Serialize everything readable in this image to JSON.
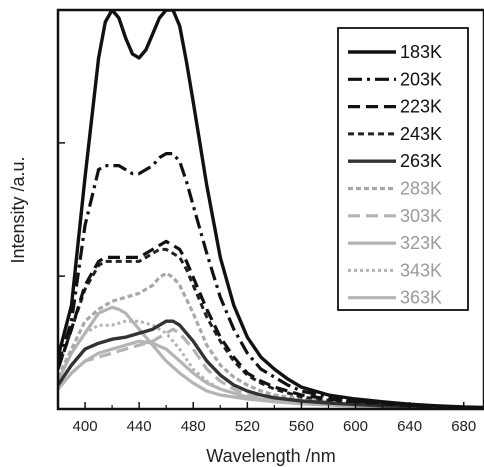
{
  "chart_data": {
    "type": "line",
    "xlabel": "Wavelength /nm",
    "ylabel": "Intensity /a.u.",
    "xlim": [
      380,
      695
    ],
    "ylim": [
      0,
      100
    ],
    "xticks": [
      400,
      440,
      480,
      520,
      560,
      600,
      640,
      680
    ],
    "yticks": [
      33.3,
      66.7
    ],
    "grid": false,
    "legend_position": "top-right",
    "series": [
      {
        "name": "183K",
        "color": "#111111",
        "dash": "solid",
        "width": 3.4,
        "x": [
          380,
          390,
          400,
          410,
          415,
          420,
          425,
          430,
          435,
          440,
          445,
          450,
          455,
          460,
          465,
          470,
          475,
          480,
          490,
          500,
          510,
          520,
          530,
          540,
          550,
          560,
          580,
          600,
          620,
          640,
          660,
          680,
          695
        ],
        "y": [
          13,
          26,
          58,
          88,
          97,
          100,
          98,
          93,
          89,
          88,
          90,
          94,
          98,
          100,
          100,
          96,
          87,
          77,
          56,
          38,
          26,
          18,
          13,
          10,
          7.5,
          5.5,
          3.5,
          2.5,
          1.8,
          1.2,
          0.8,
          0.5,
          0.4
        ]
      },
      {
        "name": "203K",
        "color": "#111111",
        "dash": "14 5 3 5",
        "width": 3.2,
        "x": [
          380,
          390,
          400,
          410,
          415,
          420,
          425,
          430,
          435,
          440,
          445,
          450,
          455,
          460,
          465,
          470,
          475,
          480,
          490,
          500,
          510,
          520,
          530,
          540,
          550,
          560,
          580,
          600,
          620,
          640,
          660,
          680,
          695
        ],
        "y": [
          11,
          22,
          46,
          60,
          61,
          61,
          61,
          60,
          59,
          59,
          60,
          61,
          63,
          64,
          64,
          62,
          57,
          51,
          39,
          28,
          20,
          14,
          10,
          8,
          6,
          4.5,
          3,
          2,
          1.5,
          1,
          0.7,
          0.5,
          0.3
        ]
      },
      {
        "name": "223K",
        "color": "#111111",
        "dash": "12 6",
        "width": 3.2,
        "x": [
          380,
          390,
          400,
          410,
          415,
          420,
          425,
          430,
          435,
          440,
          445,
          450,
          455,
          460,
          465,
          470,
          475,
          480,
          490,
          500,
          510,
          520,
          530,
          540,
          550,
          560,
          580,
          600,
          620,
          640,
          660,
          680,
          695
        ],
        "y": [
          10,
          20,
          31,
          37,
          38,
          38,
          38,
          38,
          38,
          38,
          39,
          40,
          41,
          42,
          41,
          40,
          37,
          33,
          25,
          18,
          13,
          9,
          7,
          5.5,
          4.5,
          3.5,
          2.5,
          1.8,
          1.3,
          0.9,
          0.6,
          0.4,
          0.3
        ]
      },
      {
        "name": "243K",
        "color": "#222222",
        "dash": "6 4",
        "width": 3.0,
        "x": [
          380,
          390,
          400,
          410,
          415,
          420,
          425,
          430,
          435,
          440,
          445,
          450,
          455,
          460,
          465,
          470,
          475,
          480,
          490,
          500,
          510,
          520,
          530,
          540,
          550,
          560,
          580,
          600,
          620,
          640,
          660,
          680,
          695
        ],
        "y": [
          10,
          20,
          30,
          36,
          37,
          37,
          37,
          37,
          37,
          37,
          38,
          39,
          40,
          40,
          39,
          38,
          35,
          31,
          23,
          17,
          12,
          8.5,
          6.5,
          5,
          4,
          3,
          2.2,
          1.6,
          1.1,
          0.8,
          0.5,
          0.4,
          0.3
        ]
      },
      {
        "name": "263K",
        "color": "#333333",
        "dash": "solid",
        "width": 3.4,
        "x": [
          380,
          390,
          400,
          410,
          420,
          430,
          440,
          450,
          460,
          465,
          470,
          480,
          490,
          500,
          510,
          520,
          530,
          540,
          560,
          580,
          600,
          620,
          640,
          660,
          680,
          695
        ],
        "y": [
          6,
          11,
          15,
          16.5,
          17.5,
          18,
          19,
          20,
          22,
          22,
          21,
          17,
          12,
          8.5,
          6,
          4.5,
          3.5,
          2.8,
          2,
          1.5,
          1.1,
          0.8,
          0.6,
          0.4,
          0.3,
          0.2
        ]
      },
      {
        "name": "283K",
        "color": "#a8a8a8",
        "dash": "5 3",
        "width": 3.2,
        "x": [
          380,
          390,
          400,
          410,
          420,
          430,
          440,
          450,
          455,
          460,
          465,
          470,
          480,
          490,
          500,
          510,
          520,
          530,
          540,
          560,
          580,
          600,
          620,
          640,
          660,
          680,
          695
        ],
        "y": [
          8,
          15,
          22,
          25,
          27,
          28,
          29,
          31,
          33,
          34,
          33,
          31,
          24,
          16,
          11,
          8,
          6,
          4.5,
          3.5,
          2.5,
          1.8,
          1.3,
          0.9,
          0.6,
          0.4,
          0.3,
          0.2
        ]
      },
      {
        "name": "303K",
        "color": "#b4b4b4",
        "dash": "12 6",
        "width": 3.2,
        "x": [
          380,
          390,
          400,
          410,
          420,
          430,
          440,
          450,
          460,
          465,
          470,
          480,
          490,
          500,
          510,
          520,
          540,
          560,
          580,
          600,
          620,
          640,
          660,
          680,
          695
        ],
        "y": [
          5,
          9,
          12,
          13,
          14,
          15,
          16,
          17,
          19,
          20,
          19,
          15,
          10,
          7,
          5,
          3.5,
          2.5,
          1.8,
          1.3,
          1,
          0.7,
          0.5,
          0.4,
          0.3,
          0.2
        ]
      },
      {
        "name": "323K",
        "color": "#b4b4b4",
        "dash": "solid",
        "width": 3.2,
        "x": [
          380,
          390,
          400,
          410,
          420,
          430,
          440,
          450,
          460,
          470,
          480,
          490,
          500,
          520,
          540,
          560,
          580,
          600,
          620,
          640,
          660,
          680,
          695
        ],
        "y": [
          5,
          9,
          12,
          14,
          15,
          16,
          17,
          16.5,
          15,
          12,
          9,
          6.5,
          5,
          3,
          2,
          1.5,
          1.1,
          0.8,
          0.6,
          0.4,
          0.3,
          0.2,
          0.1
        ]
      },
      {
        "name": "343K",
        "color": "#b4b4b4",
        "dash": "3 3",
        "width": 3.0,
        "x": [
          380,
          390,
          400,
          410,
          420,
          430,
          440,
          450,
          460,
          470,
          480,
          490,
          500,
          520,
          540,
          560,
          580,
          600,
          620,
          640,
          660,
          680,
          695
        ],
        "y": [
          7,
          14,
          19,
          21,
          21,
          22,
          22,
          21,
          19,
          15,
          10,
          7,
          5,
          3,
          2,
          1.5,
          1.1,
          0.8,
          0.6,
          0.4,
          0.3,
          0.2,
          0.1
        ]
      },
      {
        "name": "363K",
        "color": "#b4b4b4",
        "dash": "solid",
        "width": 3.2,
        "x": [
          380,
          390,
          400,
          410,
          420,
          425,
          430,
          440,
          450,
          460,
          470,
          480,
          490,
          500,
          520,
          540,
          560,
          580,
          600,
          620,
          640,
          660,
          680,
          695
        ],
        "y": [
          7,
          14,
          19,
          24,
          25.5,
          25,
          24,
          20,
          16,
          12,
          9,
          6.5,
          4.5,
          3.5,
          2.5,
          1.8,
          1.3,
          1,
          0.7,
          0.5,
          0.4,
          0.3,
          0.2,
          0.1
        ]
      }
    ]
  }
}
